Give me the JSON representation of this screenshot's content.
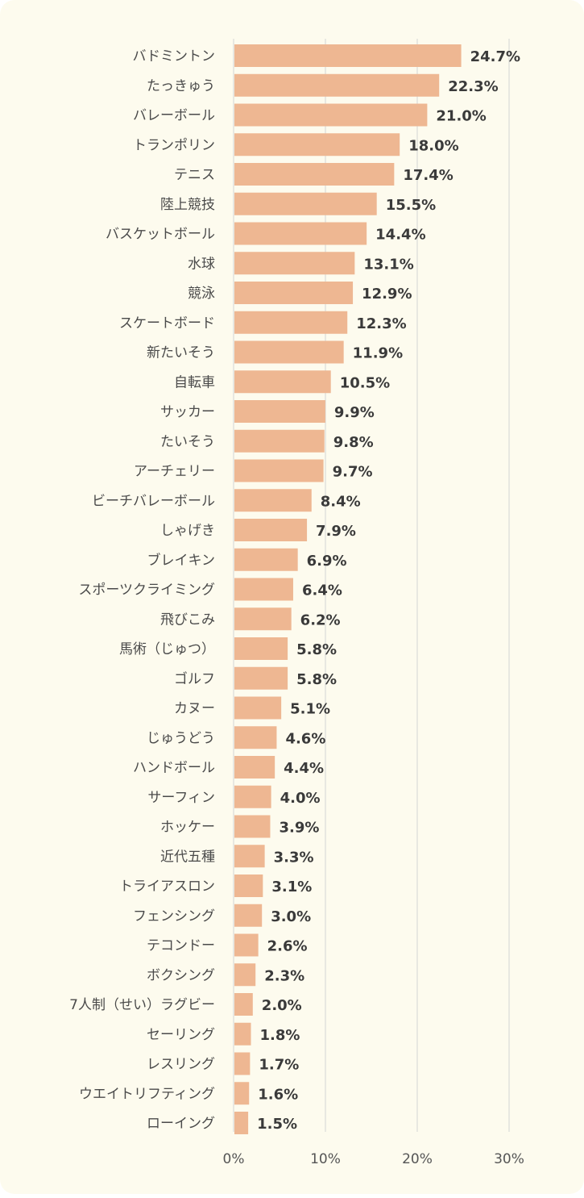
{
  "colors": {
    "background": "#fdfbee",
    "bar": "#eeb792",
    "grid": "#d4d4d4"
  },
  "chart_data": {
    "type": "bar",
    "orientation": "horizontal",
    "categories": [
      "バドミントン",
      "たっきゅう",
      "バレーボール",
      "トランポリン",
      "テニス",
      "陸上競技",
      "バスケットボール",
      "水球",
      "競泳",
      "スケートボード",
      "新たいそう",
      "自転車",
      "サッカー",
      "たいそう",
      "アーチェリー",
      "ビーチバレーボール",
      "しゃげき",
      "ブレイキン",
      "スポーツクライミング",
      "飛びこみ",
      "馬術（じゅつ）",
      "ゴルフ",
      "カヌー",
      "じゅうどう",
      "ハンドボール",
      "サーフィン",
      "ホッケー",
      "近代五種",
      "トライアスロン",
      "フェンシング",
      "テコンドー",
      "ボクシング",
      "7人制（せい）ラグビー",
      "セーリング",
      "レスリング",
      "ウエイトリフティング",
      "ローイング"
    ],
    "values": [
      24.7,
      22.3,
      21.0,
      18.0,
      17.4,
      15.5,
      14.4,
      13.1,
      12.9,
      12.3,
      11.9,
      10.5,
      9.9,
      9.8,
      9.7,
      8.4,
      7.9,
      6.9,
      6.4,
      6.2,
      5.8,
      5.8,
      5.1,
      4.6,
      4.4,
      4.0,
      3.9,
      3.3,
      3.1,
      3.0,
      2.6,
      2.3,
      2.0,
      1.8,
      1.7,
      1.6,
      1.5
    ],
    "value_labels": [
      "24.7%",
      "22.3%",
      "21.0%",
      "18.0%",
      "17.4%",
      "15.5%",
      "14.4%",
      "13.1%",
      "12.9%",
      "12.3%",
      "11.9%",
      "10.5%",
      "9.9%",
      "9.8%",
      "9.7%",
      "8.4%",
      "7.9%",
      "6.9%",
      "6.4%",
      "6.2%",
      "5.8%",
      "5.8%",
      "5.1%",
      "4.6%",
      "4.4%",
      "4.0%",
      "3.9%",
      "3.3%",
      "3.1%",
      "3.0%",
      "2.6%",
      "2.3%",
      "2.0%",
      "1.8%",
      "1.7%",
      "1.6%",
      "1.5%"
    ],
    "xlim": [
      0,
      30
    ],
    "x_ticks": [
      0,
      10,
      20,
      30
    ],
    "x_tick_labels": [
      "0%",
      "10%",
      "20%",
      "30%"
    ],
    "grid": true
  }
}
